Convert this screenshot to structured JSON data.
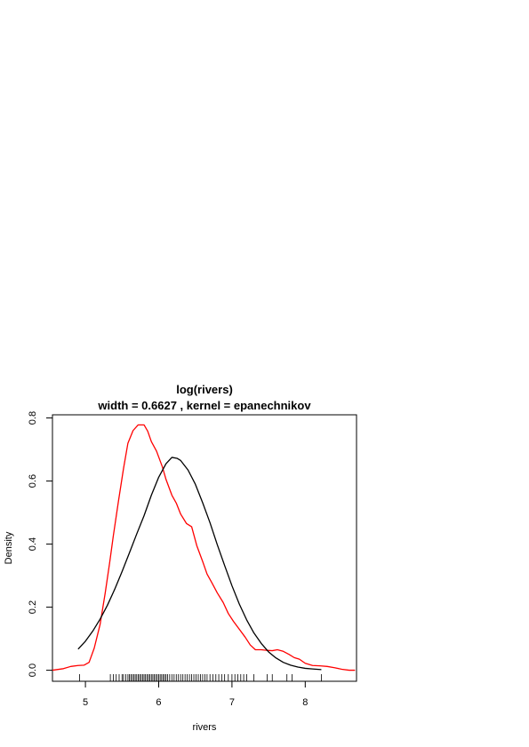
{
  "chart_data": {
    "type": "line",
    "title": "log(rivers)",
    "subtitle": "width = 0.6627 , kernel = epanechnikov",
    "xlabel": "rivers",
    "ylabel": "Density",
    "xlim": [
      4.55,
      8.7
    ],
    "ylim": [
      -0.035,
      0.81
    ],
    "x_ticks": [
      5,
      6,
      7,
      8
    ],
    "x_tick_labels": [
      "5",
      "6",
      "7",
      "8"
    ],
    "y_ticks": [
      0.0,
      0.2,
      0.4,
      0.6,
      0.8
    ],
    "y_tick_labels": [
      "0.0",
      "0.2",
      "0.4",
      "0.6",
      "0.8"
    ],
    "grid": false,
    "series": [
      {
        "color": "#ff0000",
        "x": [
          4.55,
          4.7,
          4.8,
          4.9,
          4.98,
          5.05,
          5.12,
          5.2,
          5.27,
          5.33,
          5.38,
          5.45,
          5.52,
          5.58,
          5.65,
          5.72,
          5.8,
          5.85,
          5.9,
          5.97,
          6.05,
          6.1,
          6.18,
          6.24,
          6.3,
          6.38,
          6.45,
          6.52,
          6.6,
          6.66,
          6.72,
          6.8,
          6.88,
          6.95,
          7.02,
          7.1,
          7.18,
          7.25,
          7.32,
          7.4,
          7.48,
          7.55,
          7.62,
          7.7,
          7.78,
          7.85,
          7.92,
          8.0,
          8.1,
          8.2,
          8.3,
          8.4,
          8.5,
          8.6,
          8.68
        ],
        "y": [
          0.0,
          0.005,
          0.012,
          0.015,
          0.016,
          0.025,
          0.07,
          0.145,
          0.245,
          0.34,
          0.425,
          0.535,
          0.64,
          0.72,
          0.76,
          0.778,
          0.778,
          0.758,
          0.725,
          0.695,
          0.645,
          0.605,
          0.555,
          0.53,
          0.495,
          0.465,
          0.455,
          0.395,
          0.345,
          0.305,
          0.28,
          0.245,
          0.215,
          0.18,
          0.155,
          0.13,
          0.105,
          0.08,
          0.065,
          0.065,
          0.063,
          0.062,
          0.065,
          0.06,
          0.05,
          0.04,
          0.035,
          0.022,
          0.015,
          0.014,
          0.012,
          0.008,
          0.003,
          0.0,
          0.0
        ]
      },
      {
        "color": "#000000",
        "x": [
          4.9,
          5.0,
          5.1,
          5.2,
          5.3,
          5.4,
          5.5,
          5.6,
          5.7,
          5.8,
          5.9,
          6.0,
          6.1,
          6.18,
          6.25,
          6.3,
          6.4,
          6.5,
          6.6,
          6.7,
          6.8,
          6.9,
          7.0,
          7.1,
          7.2,
          7.3,
          7.4,
          7.5,
          7.6,
          7.7,
          7.8,
          7.9,
          8.0,
          8.1,
          8.22
        ],
        "y": [
          0.067,
          0.092,
          0.124,
          0.162,
          0.206,
          0.257,
          0.313,
          0.372,
          0.432,
          0.49,
          0.555,
          0.612,
          0.655,
          0.675,
          0.672,
          0.665,
          0.635,
          0.59,
          0.531,
          0.468,
          0.398,
          0.332,
          0.268,
          0.21,
          0.16,
          0.118,
          0.085,
          0.058,
          0.039,
          0.025,
          0.016,
          0.01,
          0.006,
          0.004,
          0.002
        ]
      }
    ],
    "rug": [
      4.92,
      5.34,
      5.38,
      5.42,
      5.46,
      5.5,
      5.52,
      5.55,
      5.58,
      5.6,
      5.62,
      5.64,
      5.66,
      5.68,
      5.7,
      5.72,
      5.74,
      5.76,
      5.78,
      5.8,
      5.82,
      5.84,
      5.86,
      5.88,
      5.9,
      5.92,
      5.94,
      5.96,
      5.98,
      6.0,
      6.02,
      6.04,
      6.06,
      6.08,
      6.1,
      6.12,
      6.15,
      6.18,
      6.21,
      6.24,
      6.27,
      6.3,
      6.33,
      6.36,
      6.39,
      6.42,
      6.45,
      6.48,
      6.51,
      6.54,
      6.57,
      6.6,
      6.63,
      6.66,
      6.7,
      6.74,
      6.78,
      6.82,
      6.86,
      6.9,
      6.95,
      7.0,
      7.04,
      7.08,
      7.12,
      7.16,
      7.2,
      7.3,
      7.48,
      7.55,
      7.75,
      7.82,
      8.22
    ]
  }
}
